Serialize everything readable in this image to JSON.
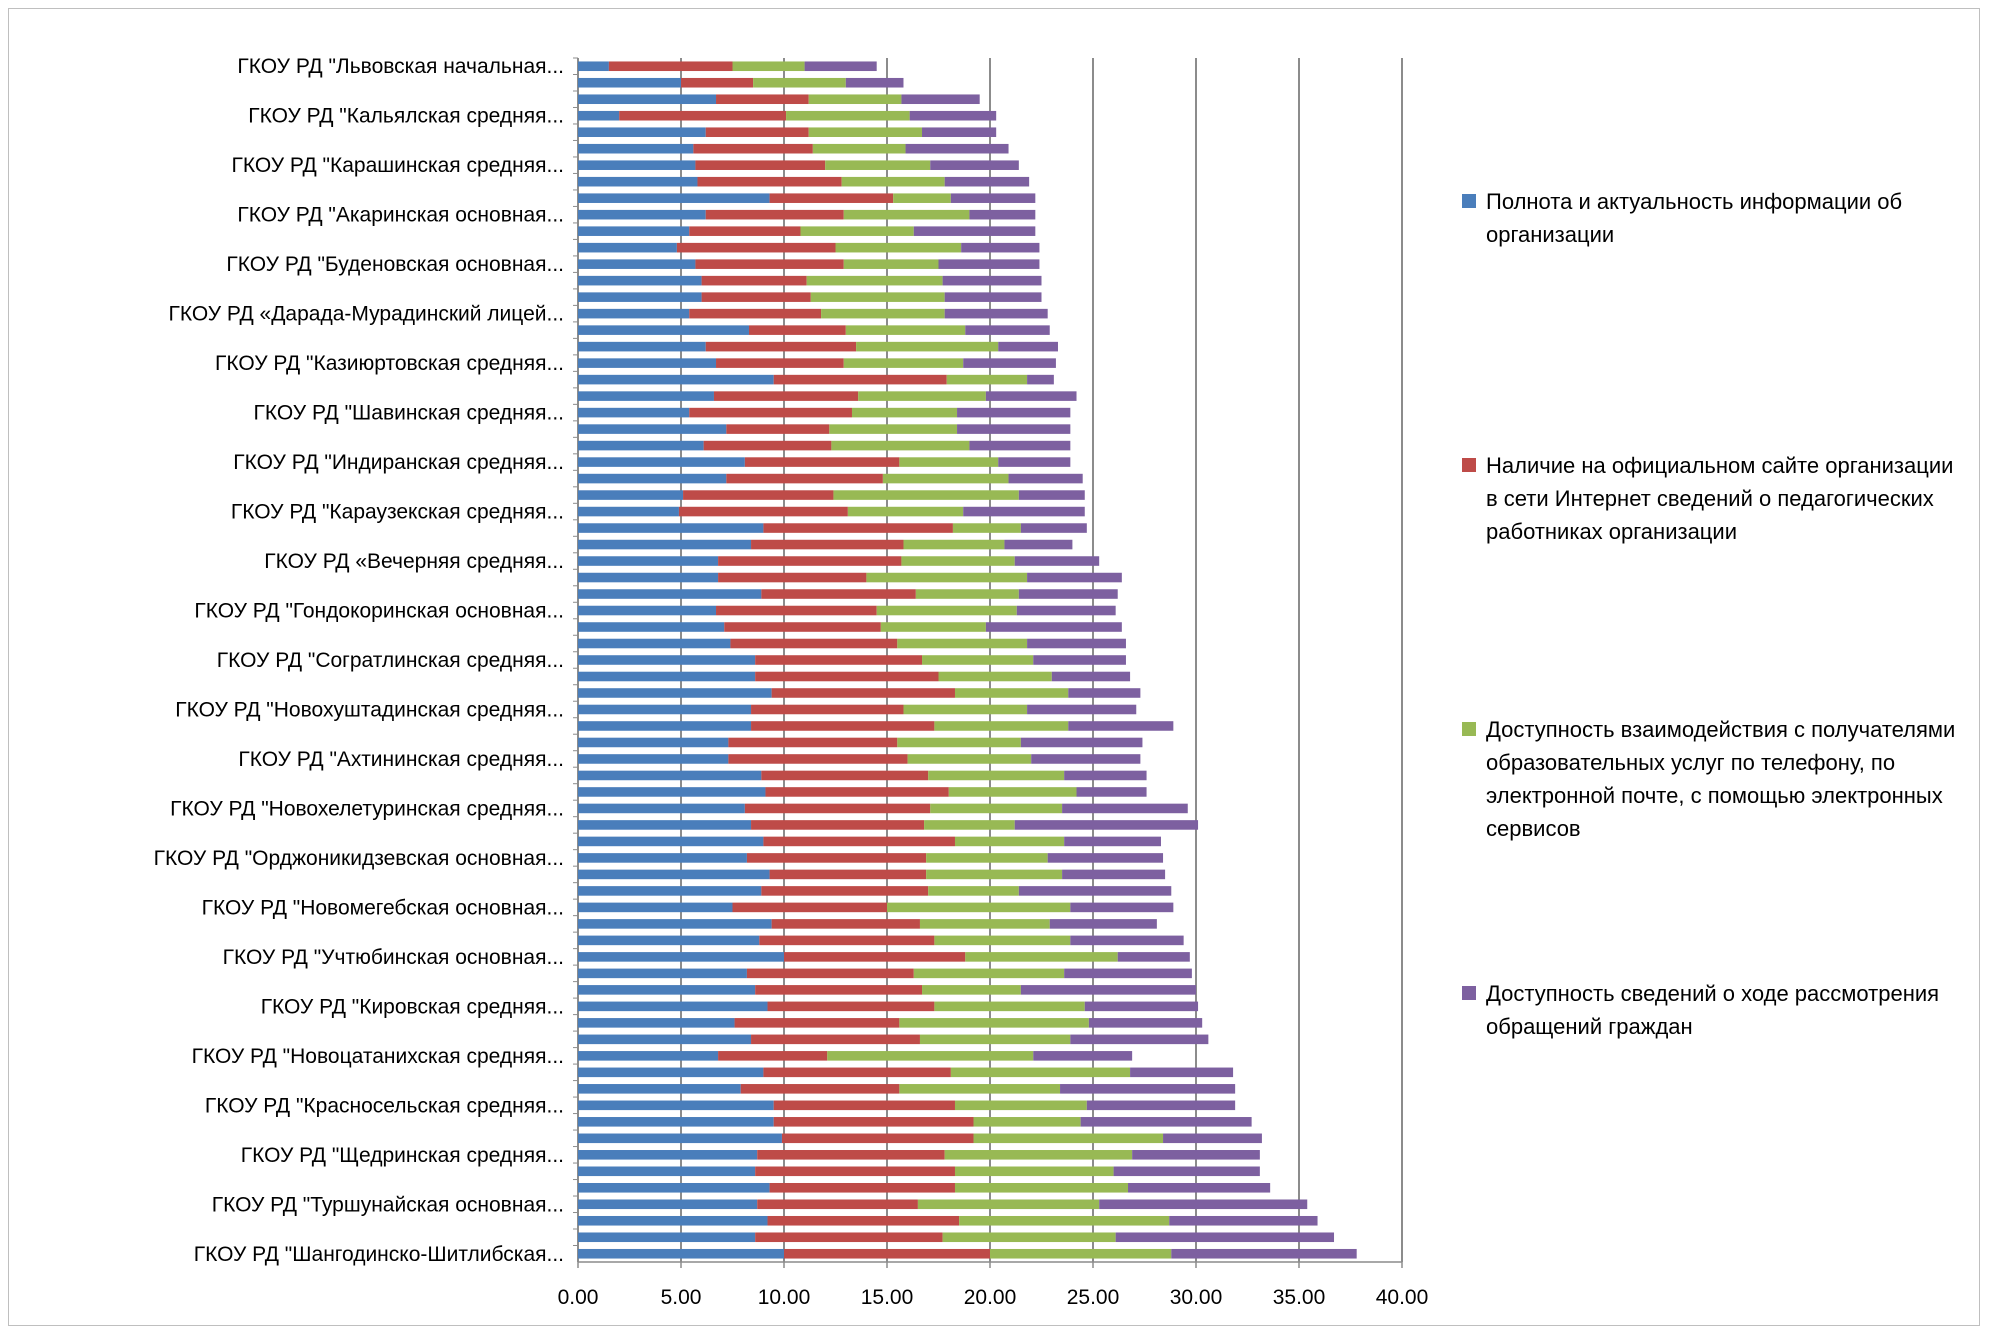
{
  "chart_data": {
    "type": "bar",
    "orientation": "horizontal",
    "stacked": true,
    "title": "",
    "xlabel": "",
    "ylabel": "",
    "xlim": [
      0,
      40
    ],
    "x_ticks": [
      "0.00",
      "5.00",
      "10.00",
      "15.00",
      "20.00",
      "25.00",
      "30.00",
      "35.00",
      "40.00"
    ],
    "grid": "vertical",
    "legend_position": "right",
    "category_labels": [
      {
        "index": 0,
        "label": "ГКОУ РД  \"Львовская начальная..."
      },
      {
        "index": 3,
        "label": "ГКОУ РД  \"Кальялская средняя..."
      },
      {
        "index": 6,
        "label": "ГКОУ РД  \"Карашинская средняя..."
      },
      {
        "index": 9,
        "label": "ГКОУ РД  \"Акаринская основная..."
      },
      {
        "index": 12,
        "label": "ГКОУ РД  \"Буденовская основная..."
      },
      {
        "index": 15,
        "label": "ГКОУ РД  «Дарада-Мурадинский лицей..."
      },
      {
        "index": 18,
        "label": "ГКОУ РД  \"Казиюртовская средняя..."
      },
      {
        "index": 21,
        "label": "ГКОУ РД  \"Шавинская средняя..."
      },
      {
        "index": 24,
        "label": "ГКОУ РД  \"Индиранская средняя..."
      },
      {
        "index": 27,
        "label": "ГКОУ РД  \"Караузекская средняя..."
      },
      {
        "index": 30,
        "label": "ГКОУ РД  «Вечерняя средняя..."
      },
      {
        "index": 33,
        "label": "ГКОУ РД  \"Гондокоринская основная..."
      },
      {
        "index": 36,
        "label": "ГКОУ РД \"Согратлинская средняя..."
      },
      {
        "index": 39,
        "label": "ГКОУ РД  \"Новохуштадинская средняя..."
      },
      {
        "index": 42,
        "label": "ГКОУ РД  \"Ахтининская средняя..."
      },
      {
        "index": 45,
        "label": "ГКОУ РД  \"Новохелетуринская средняя..."
      },
      {
        "index": 48,
        "label": "ГКОУ РД  \"Орджоникидзевская основная..."
      },
      {
        "index": 51,
        "label": "ГКОУ РД  \"Новомегебская основная..."
      },
      {
        "index": 54,
        "label": "ГКОУ РД  \"Учтюбинская основная..."
      },
      {
        "index": 57,
        "label": "ГКОУ РД  \"Кировская средняя..."
      },
      {
        "index": 60,
        "label": "ГКОУ РД  \"Новоцатанихская средняя..."
      },
      {
        "index": 63,
        "label": "ГКОУ РД  \"Красносельская средняя..."
      },
      {
        "index": 66,
        "label": "ГКОУ РД  \"Щедринская средняя..."
      },
      {
        "index": 69,
        "label": "ГКОУ РД  \"Туршунайская основная..."
      },
      {
        "index": 72,
        "label": "ГКОУ РД  \"Шангодинско-Шитлибская..."
      }
    ],
    "series": [
      {
        "name": "Полнота и актуальность информации об организации",
        "color": "#4a7ebb",
        "values": [
          1.5,
          5.0,
          6.7,
          2.0,
          6.2,
          5.6,
          5.7,
          5.8,
          9.3,
          6.2,
          5.4,
          4.8,
          5.7,
          6.0,
          6.0,
          5.4,
          8.3,
          6.2,
          6.7,
          9.5,
          6.6,
          5.4,
          7.2,
          6.1,
          8.1,
          7.2,
          5.1,
          4.9,
          9.0,
          8.4,
          6.8,
          6.8,
          8.9,
          6.7,
          7.1,
          7.4,
          8.6,
          8.6,
          9.4,
          8.4,
          8.4,
          7.3,
          7.3,
          8.9,
          9.1,
          8.1,
          8.4,
          9.0,
          8.2,
          9.3,
          8.9,
          7.5,
          9.4,
          8.8,
          10.0,
          8.2,
          8.6,
          9.2,
          7.6,
          8.4,
          6.8,
          9.0,
          7.9,
          9.5,
          9.5,
          9.9,
          8.7,
          8.6,
          9.3,
          8.7,
          9.2,
          8.6,
          10.0
        ]
      },
      {
        "name": "Наличие на официальном сайте организации в сети Интернет сведений о педагогических работниках организации",
        "color": "#be4b48",
        "values": [
          6.0,
          3.5,
          4.5,
          8.1,
          5.0,
          5.8,
          6.3,
          7.0,
          6.0,
          6.7,
          5.4,
          7.7,
          7.2,
          5.1,
          5.3,
          6.4,
          4.7,
          7.3,
          6.2,
          8.4,
          7.0,
          7.9,
          5.0,
          6.2,
          7.5,
          7.6,
          7.3,
          8.2,
          9.2,
          7.4,
          8.9,
          7.2,
          7.5,
          7.8,
          7.6,
          8.1,
          8.1,
          8.9,
          8.9,
          7.4,
          8.9,
          8.2,
          8.7,
          8.1,
          8.9,
          9.0,
          8.4,
          9.3,
          8.7,
          7.6,
          8.1,
          7.5,
          7.2,
          8.5,
          8.8,
          8.1,
          8.1,
          8.1,
          8.0,
          8.2,
          5.3,
          9.1,
          7.7,
          8.8,
          9.7,
          9.3,
          9.1,
          9.7,
          9.0,
          7.8,
          9.3,
          9.1,
          10.0
        ]
      },
      {
        "name": "Доступность взаимодействия с получателями образовательных услуг по телефону, по электронной почте, с помощью электронных сервисов",
        "color": "#98b954",
        "values": [
          3.5,
          4.5,
          4.5,
          6.0,
          5.5,
          4.5,
          5.1,
          5.0,
          2.8,
          6.1,
          5.5,
          6.1,
          4.6,
          6.6,
          6.5,
          6.0,
          5.8,
          6.9,
          5.8,
          3.9,
          6.2,
          5.1,
          6.2,
          6.7,
          4.8,
          6.1,
          9.0,
          5.6,
          3.3,
          4.9,
          5.5,
          7.8,
          5.0,
          6.8,
          5.1,
          6.3,
          5.4,
          5.5,
          5.5,
          6.0,
          6.5,
          6.0,
          6.0,
          6.6,
          6.2,
          6.4,
          4.4,
          5.3,
          5.9,
          6.6,
          4.4,
          8.9,
          6.3,
          6.6,
          7.4,
          7.3,
          4.8,
          7.3,
          9.2,
          7.3,
          10.0,
          8.7,
          7.8,
          6.4,
          5.2,
          9.2,
          9.1,
          7.7,
          8.4,
          8.8,
          10.2,
          8.4,
          8.8
        ]
      },
      {
        "name": "Доступность сведений о ходе рассмотрения обращений граждан",
        "color": "#7d60a0",
        "values": [
          3.5,
          2.8,
          3.8,
          4.2,
          3.6,
          5.0,
          4.3,
          4.1,
          4.1,
          3.2,
          5.9,
          3.8,
          4.9,
          4.8,
          4.7,
          5.0,
          4.1,
          2.9,
          4.5,
          1.3,
          4.4,
          5.5,
          5.5,
          4.9,
          3.5,
          3.6,
          3.2,
          5.9,
          3.2,
          3.3,
          4.1,
          4.6,
          4.8,
          4.8,
          6.6,
          4.8,
          4.5,
          3.8,
          3.5,
          5.3,
          5.1,
          5.9,
          5.3,
          4.0,
          3.4,
          6.1,
          8.9,
          4.7,
          5.6,
          5.0,
          7.4,
          5.0,
          5.2,
          5.5,
          3.5,
          6.2,
          8.5,
          5.5,
          5.5,
          6.7,
          4.8,
          5.0,
          8.5,
          7.2,
          8.3,
          4.8,
          6.2,
          7.1,
          6.9,
          10.1,
          7.2,
          10.6,
          9.0
        ]
      }
    ]
  },
  "legend": {
    "items": [
      {
        "label": "Полнота и актуальность информации об организации",
        "color": "#4a7ebb"
      },
      {
        "label": "Наличие на официальном сайте организации в сети Интернет сведений о педагогических работниках организации",
        "color": "#be4b48"
      },
      {
        "label": "Доступность взаимодействия с получателями образовательных услуг по телефону, по электронной почте, с помощью электронных сервисов",
        "color": "#98b954"
      },
      {
        "label": "Доступность сведений о ходе рассмотрения обращений граждан",
        "color": "#7d60a0"
      }
    ]
  }
}
